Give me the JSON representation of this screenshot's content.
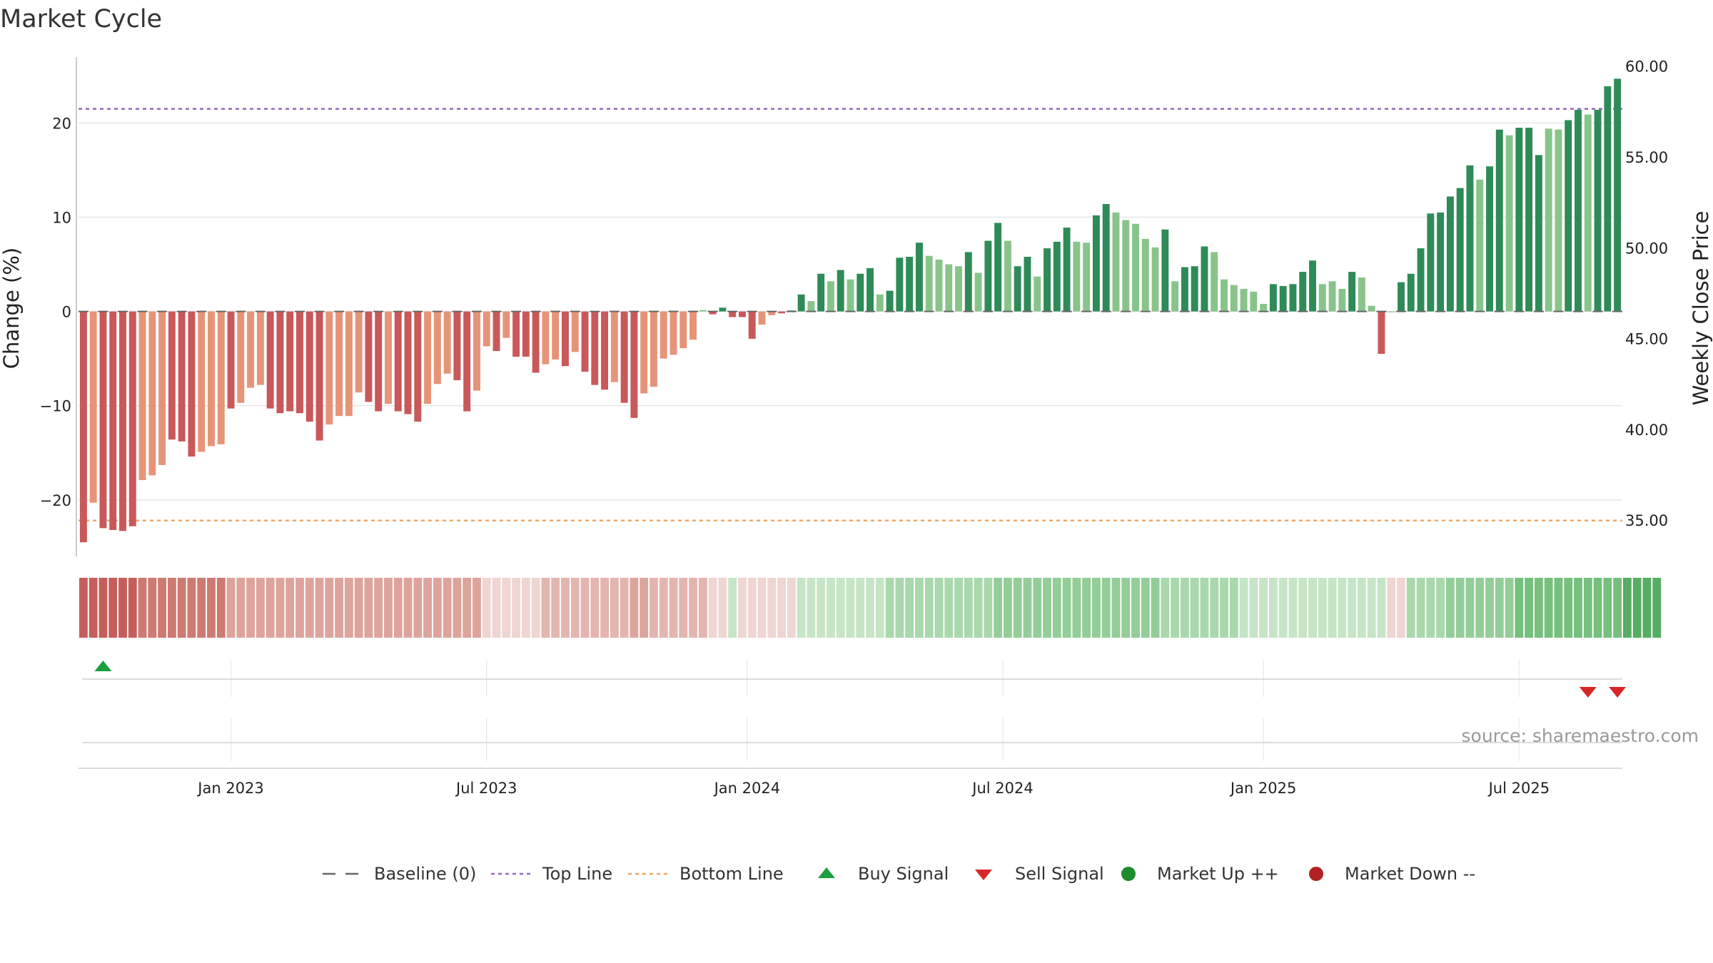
{
  "chart_data": {
    "type": "bar",
    "title": "Market Cycle",
    "ylabel": "Change (%)",
    "y2label": "Weekly Close Price",
    "ylim": [
      -26,
      27
    ],
    "y2lim": [
      33.0,
      60.5
    ],
    "y_ticks": [
      -20,
      -10,
      0,
      10,
      20
    ],
    "y_tick_labels": [
      "−20",
      "−10",
      "0",
      "10",
      "20"
    ],
    "y2_ticks": [
      35,
      40,
      45,
      50,
      55,
      60
    ],
    "y2_tick_labels": [
      "35.00",
      "40.00",
      "45.00",
      "50.00",
      "55.00",
      "60.00"
    ],
    "x_ticks": [
      {
        "label": "Jan 2023",
        "index": 15
      },
      {
        "label": "Jul 2023",
        "index": 41
      },
      {
        "label": "Jan 2024",
        "index": 67.5
      },
      {
        "label": "Jul 2024",
        "index": 93.5
      },
      {
        "label": "Jan 2025",
        "index": 120
      },
      {
        "label": "Jul 2025",
        "index": 146
      }
    ],
    "top_line": 21.5,
    "bottom_line": -22.2,
    "source": "source: sharemaestro.com",
    "grid": true,
    "legend_position": "bottom-center",
    "colors": {
      "down_strong": "#c9585a",
      "down_weak": "#e69478",
      "up_strong": "#2e8b57",
      "up_weak": "#88c48a",
      "top_line": "#9467bd",
      "bottom_line": "#f0a868",
      "baseline": "#666666",
      "buy": "#1a9e3f",
      "sell": "#d62728",
      "market_up": "#1e8c2e",
      "market_down": "#b22222"
    },
    "series": [
      {
        "values": [
          -24.5,
          -20.3,
          -23.0,
          -23.2,
          -23.3,
          -22.8,
          -17.9,
          -17.4,
          -16.3,
          -13.6,
          -13.8,
          -15.4,
          -14.9,
          -14.3,
          -14.1,
          -10.3,
          -9.7,
          -8.1,
          -7.8,
          -10.3,
          -10.8,
          -10.6,
          -10.8,
          -11.7,
          -13.7,
          -12.0,
          -11.1,
          -11.1,
          -8.6,
          -9.6,
          -10.6,
          -9.8,
          -10.6,
          -10.9,
          -11.7,
          -9.8,
          -7.7,
          -6.6,
          -7.3,
          -10.6,
          -8.4,
          -3.7,
          -4.2,
          -2.8,
          -4.8,
          -4.8,
          -6.5,
          -5.6,
          -5.1,
          -5.8,
          -4.3,
          -6.4,
          -7.8,
          -8.3,
          -7.5,
          -9.7,
          -11.3,
          -8.7,
          -8.0,
          -5.0,
          -4.6,
          -3.9,
          -3.0,
          0.15,
          -0.3,
          0.4,
          -0.6,
          -0.6,
          -2.9,
          -1.4,
          -0.4,
          -0.2,
          0.1,
          1.8,
          1.1,
          4.0,
          3.2,
          4.4,
          3.4,
          4.0,
          4.6,
          1.8,
          2.2,
          5.7,
          5.8,
          7.3,
          5.9,
          5.5,
          5.0,
          4.8,
          6.3,
          4.1,
          7.5,
          9.4,
          7.5,
          4.8,
          5.8,
          3.7,
          6.7,
          7.4,
          8.9,
          7.4,
          7.3,
          10.2,
          11.4,
          10.5,
          9.7,
          9.3,
          7.7,
          6.8,
          8.7,
          3.2,
          4.7,
          4.8,
          6.9,
          6.3,
          3.4,
          2.8,
          2.4,
          2.1,
          0.8,
          2.9,
          2.7,
          2.9,
          4.2,
          5.4,
          2.9,
          3.2,
          2.4,
          4.2,
          3.6,
          0.6,
          -4.5,
          0,
          3.1,
          4.0,
          6.7,
          10.4,
          10.5,
          12.2,
          13.1,
          15.5,
          14.0,
          15.4,
          19.3,
          18.7,
          19.5,
          19.5,
          16.6,
          19.4,
          19.3,
          20.3,
          21.4,
          20.9,
          21.4,
          23.9,
          24.7
        ],
        "signals": [
          1,
          0,
          1,
          1,
          1,
          1,
          0,
          0,
          0,
          1,
          1,
          1,
          0,
          0,
          0,
          1,
          0,
          0,
          0,
          1,
          1,
          1,
          1,
          1,
          1,
          0,
          0,
          0,
          0,
          1,
          1,
          0,
          1,
          1,
          1,
          0,
          0,
          0,
          1,
          1,
          0,
          0,
          1,
          0,
          1,
          1,
          1,
          0,
          0,
          1,
          0,
          1,
          1,
          1,
          0,
          1,
          1,
          0,
          0,
          0,
          0,
          0,
          0,
          0,
          1,
          1,
          1,
          1,
          1,
          0,
          0,
          1,
          1,
          1,
          0,
          1,
          0,
          1,
          0,
          1,
          1,
          0,
          1,
          1,
          1,
          1,
          0,
          0,
          0,
          0,
          1,
          0,
          1,
          1,
          0,
          1,
          1,
          0,
          1,
          1,
          1,
          0,
          0,
          1,
          1,
          0,
          0,
          0,
          0,
          0,
          1,
          0,
          1,
          1,
          1,
          0,
          0,
          0,
          0,
          0,
          0,
          1,
          1,
          1,
          1,
          1,
          0,
          0,
          0,
          1,
          0,
          0,
          1,
          0,
          1,
          1,
          1,
          1,
          1,
          1,
          1,
          1,
          0,
          1,
          1,
          0,
          1,
          1,
          1,
          0,
          0,
          1,
          1,
          0,
          1,
          1,
          1
        ]
      }
    ],
    "momentum_bar": [
      -5,
      -5,
      -5,
      -5,
      -5,
      -5,
      -4,
      -4,
      -4,
      -4,
      -4,
      -4,
      -4,
      -4,
      -4,
      -3,
      -3,
      -3,
      -3,
      -3,
      -3,
      -3,
      -3,
      -3,
      -3,
      -3,
      -3,
      -3,
      -3,
      -3,
      -3,
      -3,
      -3,
      -3,
      -3,
      -3,
      -3,
      -3,
      -3,
      -3,
      -3,
      -1,
      -1,
      -1,
      -1,
      -1,
      -1,
      -2,
      -2,
      -2,
      -2,
      -2,
      -2,
      -2,
      -2,
      -2,
      -3,
      -3,
      -2,
      -2,
      -2,
      -2,
      -2,
      -2,
      -1,
      -1,
      1,
      -1,
      -1,
      -1,
      -1,
      -1,
      -1,
      1,
      1,
      1,
      1,
      1,
      1,
      1,
      1,
      1,
      2,
      2,
      2,
      2,
      2,
      2,
      2,
      2,
      2,
      2,
      2,
      3,
      3,
      3,
      3,
      3,
      3,
      3,
      3,
      3,
      3,
      3,
      3,
      3,
      3,
      3,
      3,
      3,
      2,
      2,
      2,
      2,
      2,
      2,
      2,
      2,
      1,
      1,
      1,
      1,
      1,
      1,
      1,
      1,
      1,
      1,
      1,
      1,
      1,
      1,
      1,
      -1,
      -1,
      2,
      2,
      2,
      2,
      3,
      3,
      3,
      3,
      3,
      3,
      3,
      4,
      4,
      4,
      4,
      4,
      4,
      4,
      4,
      4,
      4,
      4,
      5,
      5,
      5,
      5
    ],
    "buy_signals": [
      2
    ],
    "sell_signals": [
      153,
      156
    ]
  },
  "legend": [
    {
      "key": "baseline",
      "label": "Baseline (0)"
    },
    {
      "key": "top",
      "label": "Top Line"
    },
    {
      "key": "bottom",
      "label": "Bottom Line"
    },
    {
      "key": "buy",
      "label": "Buy Signal"
    },
    {
      "key": "sell",
      "label": "Sell Signal"
    },
    {
      "key": "mup",
      "label": "Market Up ++"
    },
    {
      "key": "mdown",
      "label": "Market Down --"
    }
  ]
}
